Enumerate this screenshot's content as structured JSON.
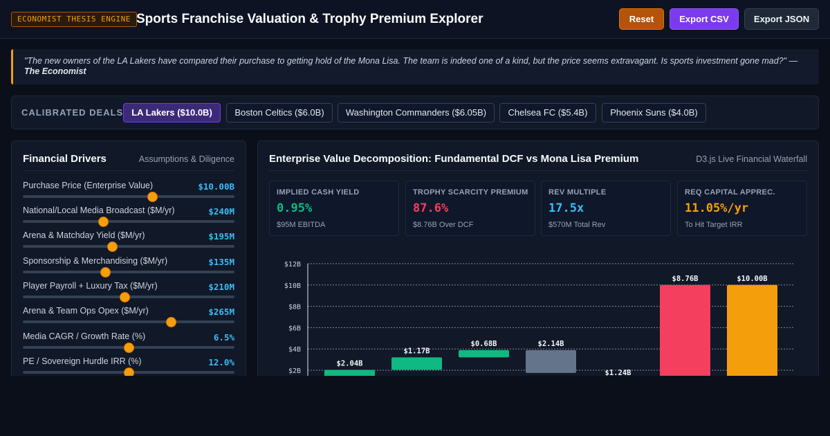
{
  "header": {
    "badge": "ECONOMIST THESIS ENGINE",
    "title": "Sports Franchise Valuation & Trophy Premium Explorer",
    "buttons": {
      "reset": "Reset",
      "export_csv": "Export CSV",
      "export_json": "Export JSON"
    }
  },
  "quote": {
    "text": "\"The new owners of the LA Lakers have compared their purchase to getting hold of the Mona Lisa. The team is indeed one of a kind, but the price seems extravagant. Is sports investment gone mad?\" —",
    "source": "The Economist"
  },
  "deals": {
    "label": "CALIBRATED DEALS:",
    "items": [
      {
        "label": "LA Lakers ($10.0B)",
        "active": true
      },
      {
        "label": "Boston Celtics ($6.0B)",
        "active": false
      },
      {
        "label": "Washington Commanders ($6.05B)",
        "active": false
      },
      {
        "label": "Chelsea FC ($5.4B)",
        "active": false
      },
      {
        "label": "Phoenix Suns ($4.0B)",
        "active": false
      }
    ]
  },
  "drivers": {
    "title": "Financial Drivers",
    "subtitle": "Assumptions & Diligence",
    "sliders": [
      {
        "label": "Purchase Price (Enterprise Value)",
        "value": "$10.00B",
        "level": 0.61
      },
      {
        "label": "National/Local Media Broadcast ($M/yr)",
        "value": "$240M",
        "level": 0.38
      },
      {
        "label": "Arena & Matchday Yield ($M/yr)",
        "value": "$195M",
        "level": 0.42
      },
      {
        "label": "Sponsorship & Merchandising ($M/yr)",
        "value": "$135M",
        "level": 0.39
      },
      {
        "label": "Player Payroll + Luxury Tax ($M/yr)",
        "value": "$210M",
        "level": 0.48
      },
      {
        "label": "Arena & Team Ops Opex ($M/yr)",
        "value": "$265M",
        "level": 0.7
      },
      {
        "label": "Media CAGR / Growth Rate (%)",
        "value": "6.5%",
        "level": 0.5
      },
      {
        "label": "PE / Sovereign Hurdle IRR (%)",
        "value": "12.0%",
        "level": 0.5
      }
    ]
  },
  "waterfall_panel": {
    "title": "Enterprise Value Decomposition: Fundamental DCF vs Mona Lisa Premium",
    "subtitle": "D3.js Live Financial Waterfall",
    "kpis": [
      {
        "label": "IMPLIED CASH YIELD",
        "value": "0.95%",
        "sub": "$95M EBITDA",
        "color": "#10b981"
      },
      {
        "label": "TROPHY SCARCITY PREMIUM",
        "value": "87.6%",
        "sub": "$8.76B Over DCF",
        "color": "#f43f5e"
      },
      {
        "label": "REV MULTIPLE",
        "value": "17.5x",
        "sub": "$570M Total Rev",
        "color": "#38bdf8"
      },
      {
        "label": "REQ CAPITAL APPREC.",
        "value": "11.05%/yr",
        "sub": "To Hit Target IRR",
        "color": "#f59e0b"
      }
    ]
  },
  "chart_data": {
    "type": "bar",
    "subtype": "waterfall",
    "ylim": [
      0,
      12
    ],
    "y_ticks": [
      "$2B",
      "$4B",
      "$6B",
      "$8B",
      "$10B",
      "$12B"
    ],
    "grid": true,
    "bars": [
      {
        "label": "$2.04B",
        "base": 0,
        "value": 2.04,
        "color": "#10b981"
      },
      {
        "label": "$1.17B",
        "base": 2.04,
        "value": 1.17,
        "color": "#10b981"
      },
      {
        "label": "$0.68B",
        "base": 3.21,
        "value": 0.68,
        "color": "#10b981"
      },
      {
        "label": "$2.14B",
        "base": 1.75,
        "value": 2.14,
        "color": "#64748b"
      },
      {
        "label": "$1.24B",
        "base": 0.0,
        "value": 1.24,
        "color": "#64748b"
      },
      {
        "label": "$8.76B",
        "base": 1.24,
        "value": 8.76,
        "color": "#f43f5e"
      },
      {
        "label": "$10.00B",
        "base": 0,
        "value": 10.0,
        "color": "#f59e0b"
      }
    ]
  }
}
